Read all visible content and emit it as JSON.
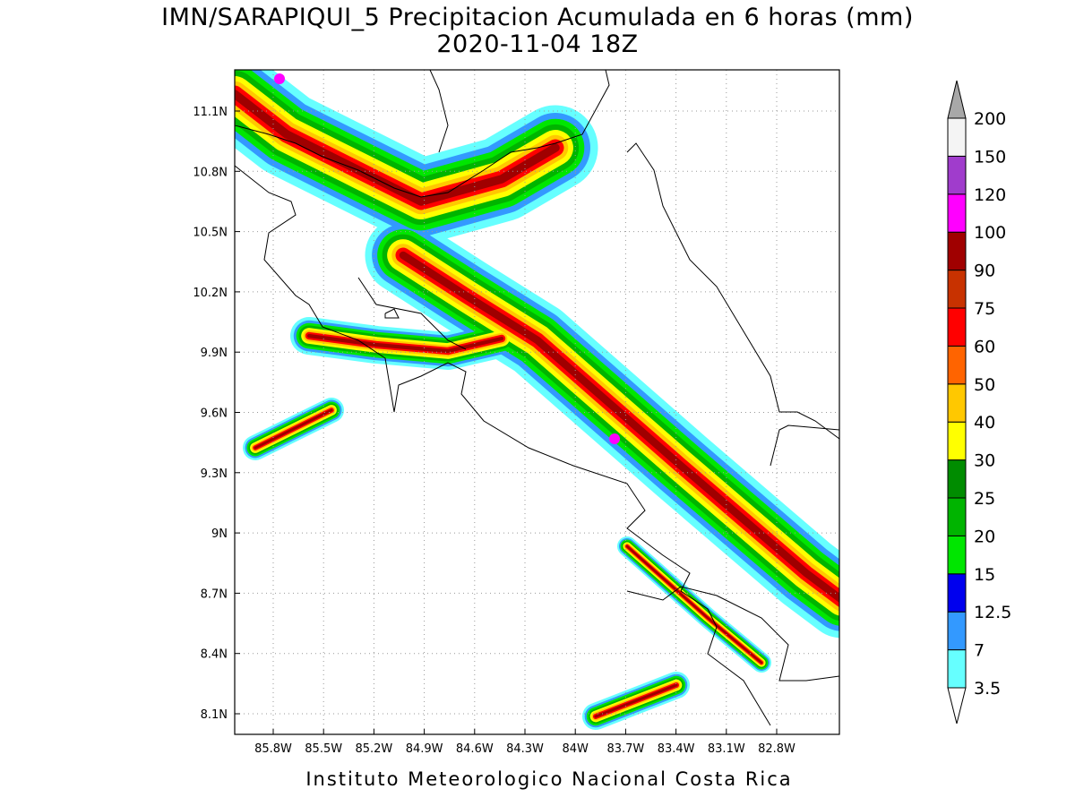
{
  "header": {
    "title": "IMN/SARAPIQUI_5 Precipitacion Acumulada en 6 horas (mm)",
    "subtitle": "2020-11-04 18Z"
  },
  "map": {
    "lon_labels": [
      "85.8W",
      "85.5W",
      "85.2W",
      "84.9W",
      "84.6W",
      "84.3W",
      "84W",
      "83.7W",
      "83.4W",
      "83.1W",
      "82.8W"
    ],
    "lat_labels": [
      "11.1N",
      "10.8N",
      "10.5N",
      "10.2N",
      "9.9N",
      "9.6N",
      "9.3N",
      "9N",
      "8.7N",
      "8.4N",
      "8.1N"
    ]
  },
  "colorbar": {
    "levels": [
      3.5,
      7,
      12.5,
      15,
      20,
      25,
      30,
      40,
      50,
      60,
      75,
      90,
      100,
      120,
      150,
      200
    ],
    "colors": [
      "#66ffff",
      "#3399ff",
      "#0000ee",
      "#00e600",
      "#00b400",
      "#008c00",
      "#ffff00",
      "#ffc800",
      "#ff6400",
      "#ff0000",
      "#c83200",
      "#a00000",
      "#ff00ff",
      "#a03ccc",
      "#f4f4f4"
    ],
    "under_color": "#ffffff",
    "over_color": "#a8a8a8"
  },
  "footer": "Instituto Meteorologico Nacional Costa Rica"
}
